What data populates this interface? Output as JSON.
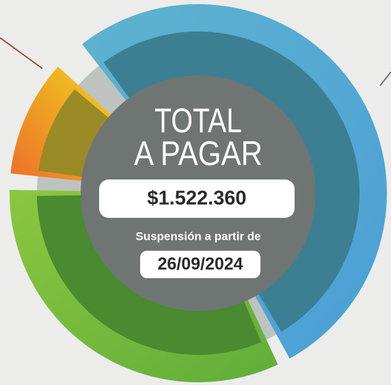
{
  "header": {
    "title_line_1": "TOTAL",
    "title_line_2": "A PAGAR"
  },
  "amount": "$1.522.360",
  "suspension": {
    "label": "Suspensión a partir de",
    "date": "26/09/2024"
  }
}
